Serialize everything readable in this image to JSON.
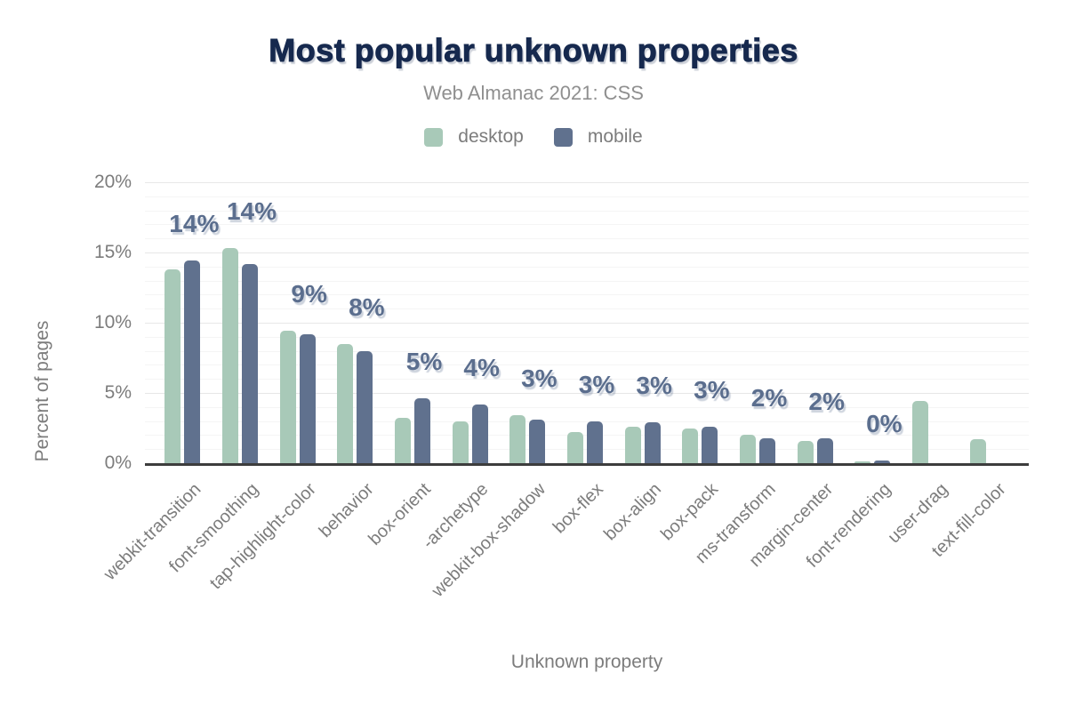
{
  "title": "Most popular unknown properties",
  "subtitle": "Web Almanac 2021: CSS",
  "legend": {
    "items": [
      {
        "label": "desktop",
        "color": "#a8c9b8"
      },
      {
        "label": "mobile",
        "color": "#60718e"
      }
    ]
  },
  "y_axis": {
    "title": "Percent of pages",
    "ticks": [
      "0%",
      "5%",
      "10%",
      "15%",
      "20%"
    ]
  },
  "x_axis": {
    "title": "Unknown property"
  },
  "colors": {
    "title": "#16294e",
    "data_label": "#5b6e8e",
    "axis_text": "#7c7c7c",
    "axis_line": "#3d3d3d",
    "desktop_bar": "#a8c9b8",
    "mobile_bar": "#60718e"
  },
  "chart_data": {
    "type": "bar",
    "title": "Most popular unknown properties",
    "subtitle": "Web Almanac 2021: CSS",
    "xlabel": "Unknown property",
    "ylabel": "Percent of pages",
    "ylim": [
      0,
      20
    ],
    "y_ticks": [
      "0%",
      "5%",
      "10%",
      "15%",
      "20%"
    ],
    "grid": "horizontal; minor every 1%, major every 5%",
    "legend_position": "top",
    "categories": [
      "webkit-transition",
      "font-smoothing",
      "tap-highlight-color",
      "behavior",
      "box-orient",
      "-archetype",
      "webkit-box-shadow",
      "box-flex",
      "box-align",
      "box-pack",
      "ms-transform",
      "margin-center",
      "font-rendering",
      "user-drag",
      "text-fill-color"
    ],
    "series": [
      {
        "name": "desktop",
        "color": "#a8c9b8",
        "values": [
          13.8,
          15.3,
          9.4,
          8.5,
          3.2,
          3.0,
          3.4,
          2.2,
          2.6,
          2.5,
          2.0,
          1.6,
          0.1,
          4.4,
          1.7
        ]
      },
      {
        "name": "mobile",
        "color": "#60718e",
        "values": [
          14.4,
          14.2,
          9.2,
          8.0,
          4.6,
          4.2,
          3.1,
          3.0,
          2.9,
          2.6,
          1.8,
          1.8,
          0.2,
          null,
          null
        ]
      }
    ],
    "bar_labels": [
      "14%",
      "14%",
      "9%",
      "8%",
      "5%",
      "4%",
      "3%",
      "3%",
      "3%",
      "3%",
      "2%",
      "2%",
      "0%",
      null,
      null
    ]
  }
}
